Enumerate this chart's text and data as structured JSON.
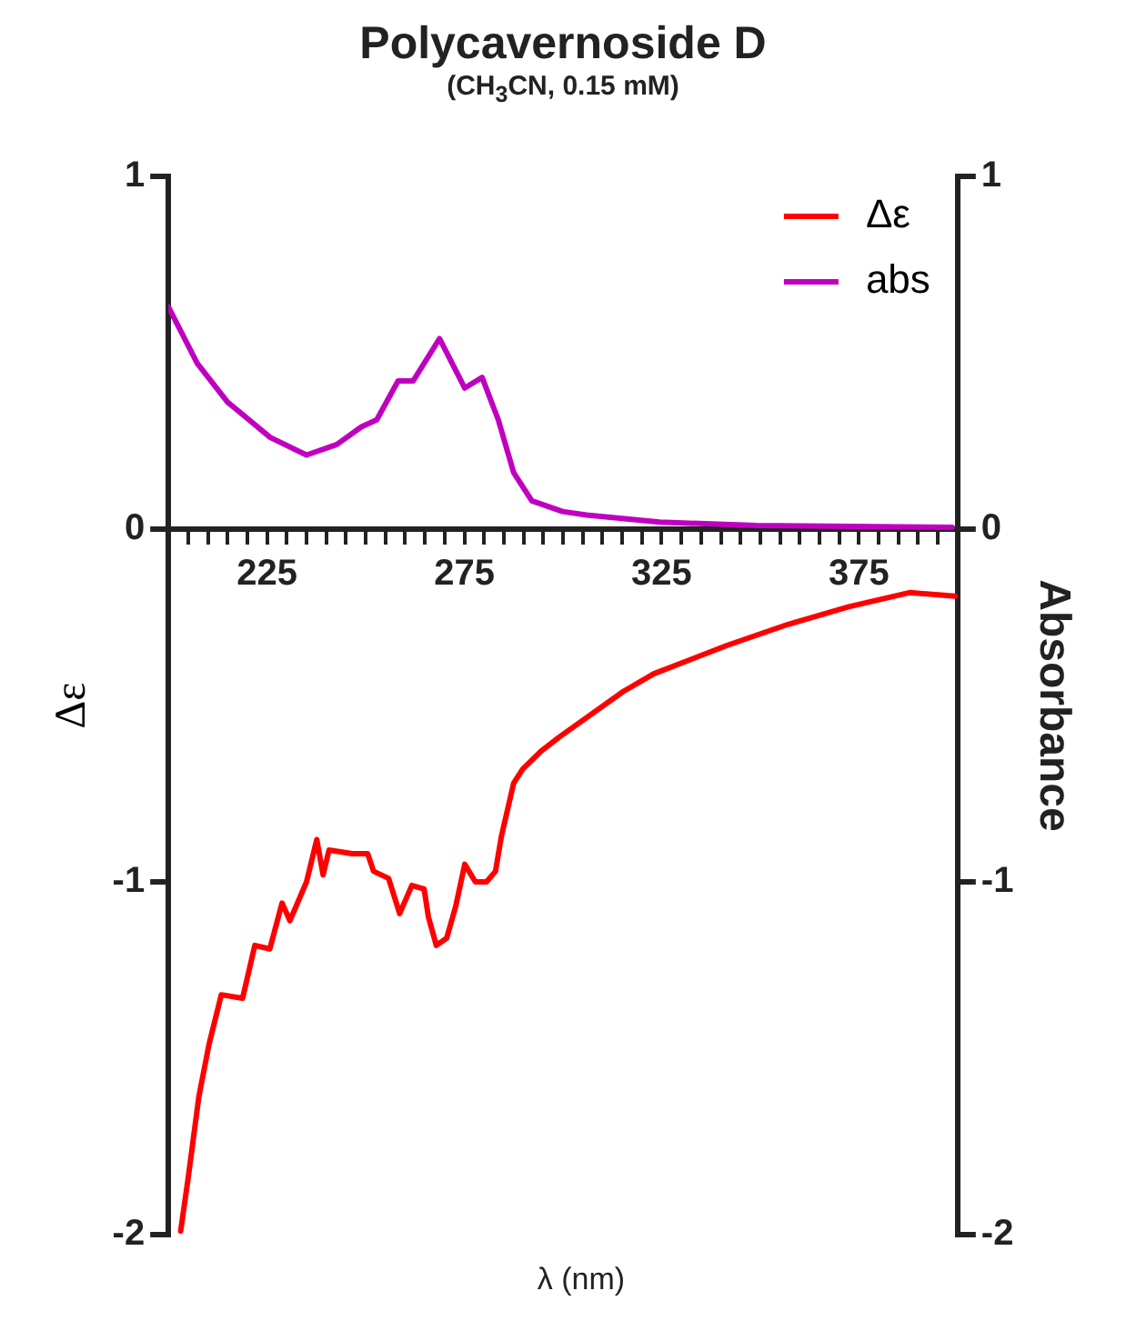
{
  "chart_data": {
    "type": "line",
    "title": "Polycavernoside D",
    "subtitle": "(CH$_{3}$CN, 0.15 mM)",
    "xlabel": "λ (nm)",
    "ylabel": "Δε",
    "y2label": "Absorbance",
    "xlim": [
      200,
      400
    ],
    "xticks": [
      {
        "value": 205,
        "label": null
      },
      {
        "value": 210,
        "label": null
      },
      {
        "value": 215,
        "label": null
      },
      {
        "value": 220,
        "label": null
      },
      225,
      {
        "value": 230,
        "label": null
      },
      {
        "value": 235,
        "label": null
      },
      {
        "value": 240,
        "label": null
      },
      {
        "value": 245,
        "label": null
      },
      {
        "value": 250,
        "label": null
      },
      {
        "value": 255,
        "label": null
      },
      {
        "value": 260,
        "label": null
      },
      {
        "value": 265,
        "label": null
      },
      {
        "value": 270,
        "label": null
      },
      275,
      {
        "value": 280,
        "label": null
      },
      {
        "value": 285,
        "label": null
      },
      {
        "value": 290,
        "label": null
      },
      {
        "value": 295,
        "label": null
      },
      {
        "value": 300,
        "label": null
      },
      {
        "value": 305,
        "label": null
      },
      {
        "value": 310,
        "label": null
      },
      {
        "value": 315,
        "label": null
      },
      {
        "value": 320,
        "label": null
      },
      325,
      {
        "value": 330,
        "label": null
      },
      {
        "value": 335,
        "label": null
      },
      {
        "value": 340,
        "label": null
      },
      {
        "value": 345,
        "label": null
      },
      {
        "value": 350,
        "label": null
      },
      {
        "value": 355,
        "label": null
      },
      {
        "value": 360,
        "label": null
      },
      {
        "value": 365,
        "label": null
      },
      {
        "value": 370,
        "label": null
      },
      375,
      {
        "value": 380,
        "label": null
      },
      {
        "value": 385,
        "label": null
      },
      {
        "value": 390,
        "label": null
      },
      {
        "value": 395,
        "label": null
      }
    ],
    "ylim": [
      -2,
      1
    ],
    "yticks": [
      -2,
      -1,
      0,
      1
    ],
    "y2lim": [
      -2,
      1
    ],
    "y2ticks": [
      -2,
      -1,
      0,
      1
    ],
    "grid": false,
    "legend": "top right",
    "marker": "none",
    "line_style": "solid",
    "series": [
      {
        "name": "Δε",
        "color": "#ff0000",
        "x": [
          203.1,
          205,
          207.7,
          210.3,
          213.4,
          218.8,
          221.9,
          225.7,
          228.8,
          230.8,
          235,
          237.6,
          239.2,
          240.7,
          246.6,
          250.5,
          252,
          255.8,
          258.6,
          261.7,
          264.8,
          265.9,
          267.9,
          270.5,
          272.8,
          275.1,
          277.8,
          280.6,
          282.9,
          284.4,
          287.5,
          289.8,
          294.4,
          299,
          315.3,
          323,
          341.5,
          357,
          372.4,
          387.8,
          399.4
        ],
        "values": [
          -1.99,
          -1.84,
          -1.61,
          -1.46,
          -1.32,
          -1.33,
          -1.18,
          -1.19,
          -1.06,
          -1.11,
          -1.0,
          -0.88,
          -0.98,
          -0.91,
          -0.92,
          -0.92,
          -0.97,
          -0.99,
          -1.09,
          -1.01,
          -1.02,
          -1.1,
          -1.18,
          -1.16,
          -1.07,
          -0.95,
          -1.0,
          -1.0,
          -0.97,
          -0.87,
          -0.72,
          -0.68,
          -0.63,
          -0.59,
          -0.46,
          -0.41,
          -0.33,
          -0.27,
          -0.22,
          -0.18,
          -0.19
        ]
      },
      {
        "name": "abs",
        "color": "#c000c0",
        "axis": "y2",
        "x": [
          200,
          207.3,
          215,
          225.8,
          235,
          242.7,
          248.9,
          252.8,
          258.2,
          262,
          268.7,
          275.1,
          279.5,
          283.6,
          287.5,
          292.1,
          299.9,
          306,
          324.5,
          349,
          398.6
        ],
        "values": [
          0.63,
          0.47,
          0.36,
          0.26,
          0.21,
          0.24,
          0.29,
          0.31,
          0.42,
          0.42,
          0.54,
          0.4,
          0.43,
          0.31,
          0.16,
          0.08,
          0.05,
          0.04,
          0.02,
          0.01,
          0.005
        ]
      }
    ]
  }
}
